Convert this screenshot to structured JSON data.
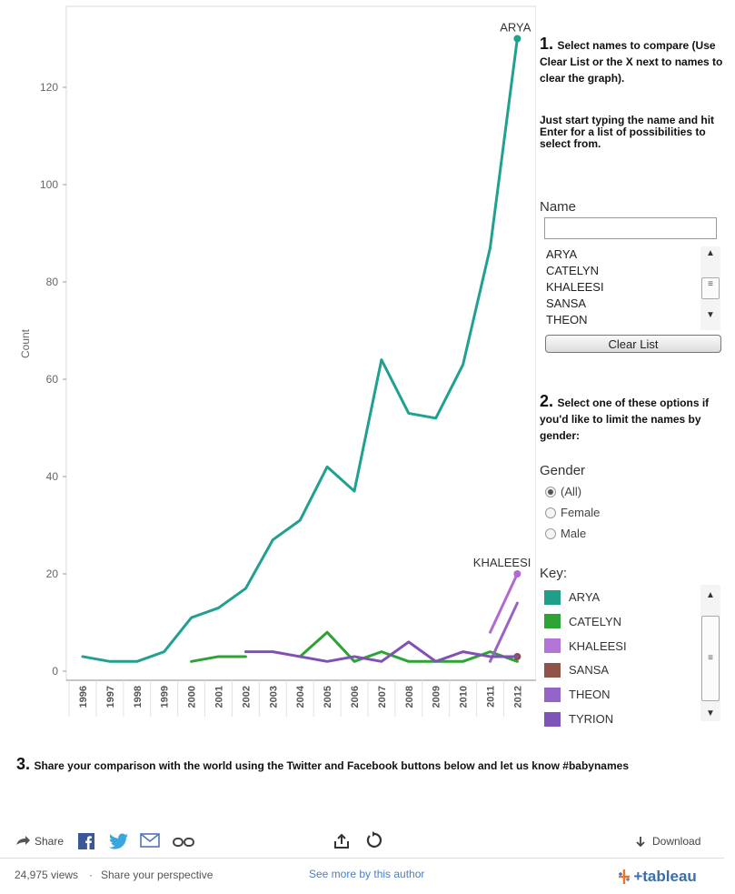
{
  "chart_data": {
    "type": "line",
    "x": [
      "1996",
      "1997",
      "1998",
      "1999",
      "2000",
      "2001",
      "2002",
      "2003",
      "2004",
      "2005",
      "2006",
      "2007",
      "2008",
      "2009",
      "2010",
      "2011",
      "2012"
    ],
    "ylabel": "Count",
    "ylim": [
      0,
      135
    ],
    "yticks": [
      0,
      20,
      40,
      60,
      80,
      100,
      120
    ],
    "grid": false,
    "series": [
      {
        "name": "ARYA",
        "color": "#20a090",
        "values": [
          3,
          2,
          2,
          4,
          11,
          13,
          17,
          27,
          31,
          42,
          37,
          64,
          53,
          52,
          63,
          87,
          130
        ]
      },
      {
        "name": "CATELYN",
        "color": "#2ea335",
        "values": [
          null,
          null,
          null,
          null,
          2,
          3,
          3,
          null,
          3,
          8,
          2,
          4,
          2,
          2,
          2,
          4,
          2
        ]
      },
      {
        "name": "KHALEESI",
        "color": "#b06ad0",
        "segments": [
          {
            "x": [
              "2011",
              "2012"
            ],
            "values": [
              8,
              20
            ]
          }
        ]
      },
      {
        "name": "SANSA",
        "color": "#8e5040",
        "values": [
          null,
          null,
          null,
          null,
          null,
          null,
          null,
          null,
          null,
          null,
          null,
          null,
          null,
          null,
          null,
          null,
          3
        ]
      },
      {
        "name": "THEON",
        "color": "#9a63c8",
        "segments": [
          {
            "x": [
              "2011",
              "2012"
            ],
            "values": [
              2,
              14
            ]
          }
        ]
      },
      {
        "name": "TYRION",
        "color": "#8050b5",
        "values": [
          null,
          null,
          null,
          null,
          null,
          null,
          4,
          4,
          3,
          2,
          3,
          2,
          6,
          2,
          4,
          3,
          3
        ]
      }
    ],
    "annotations": [
      {
        "label": "ARYA",
        "x": "2012",
        "y": 130
      },
      {
        "label": "KHALEESI",
        "x": "2012",
        "y": 20
      }
    ]
  },
  "panel": {
    "step1_num": "1.",
    "step1_text": "Select names to compare (Use Clear List or the X next to names to clear the graph).",
    "step1_hint": "Just start typing the name and hit Enter for a list of possibilities to select from.",
    "name_label": "Name",
    "name_input_value": "",
    "names": [
      "ARYA",
      "CATELYN",
      "KHALEESI",
      "SANSA",
      "THEON",
      "TYRION"
    ],
    "clear_button": "Clear List",
    "step2_num": "2.",
    "step2_text": "Select one of these options if you'd like to limit the names by gender:",
    "gender_label": "Gender",
    "gender_options": [
      "(All)",
      "Female",
      "Male"
    ],
    "gender_selected": "(All)",
    "key_label": "Key:",
    "key_items": [
      {
        "label": "ARYA",
        "color": "#1f9e8c"
      },
      {
        "label": "CATELYN",
        "color": "#2ea335"
      },
      {
        "label": "KHALEESI",
        "color": "#b475d8"
      },
      {
        "label": "SANSA",
        "color": "#8e5448"
      },
      {
        "label": "THEON",
        "color": "#9465c8"
      },
      {
        "label": "TYRION",
        "color": "#7d55b8"
      }
    ]
  },
  "step3": {
    "num": "3.",
    "text": "Share your comparison with the world using the Twitter and Facebook buttons below and let us know #babynames"
  },
  "toolbar": {
    "share_label": "Share",
    "download_label": "Download",
    "icons": [
      "share-arrow-icon",
      "facebook-icon",
      "twitter-icon",
      "email-icon",
      "link-icon",
      "share-box-icon",
      "revert-icon",
      "download-arrow-icon"
    ]
  },
  "footer": {
    "views": "24,975 views",
    "separator": "·",
    "perspective": "Share your perspective",
    "author_link": "See more by this author",
    "brand": "+tableau"
  }
}
